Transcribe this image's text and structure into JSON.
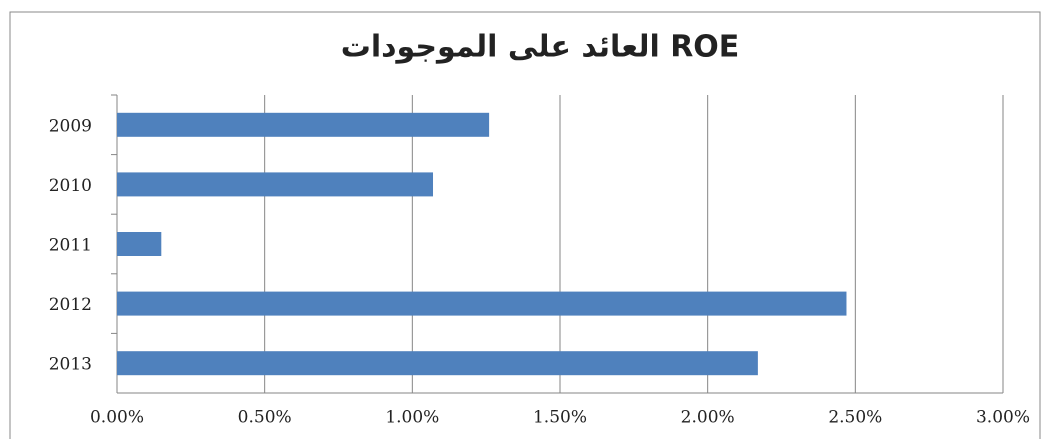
{
  "chart_data": {
    "type": "bar",
    "orientation": "horizontal",
    "title": "العائد على الموجودات ROE",
    "categories": [
      "2009",
      "2010",
      "2011",
      "2012",
      "2013"
    ],
    "values": [
      1.26,
      1.07,
      0.15,
      2.47,
      2.17
    ],
    "color": "#4f81bd",
    "xlim": [
      0,
      3
    ],
    "xticks": [
      {
        "value": 0,
        "label": "0.00%"
      },
      {
        "value": 0.5,
        "label": "0.50%"
      },
      {
        "value": 1,
        "label": "1.00%"
      },
      {
        "value": 1.5,
        "label": "1.50%"
      },
      {
        "value": 2,
        "label": "2.00%"
      },
      {
        "value": 2.5,
        "label": "2.50%"
      },
      {
        "value": 3,
        "label": "3.00%"
      }
    ],
    "grid": true
  }
}
